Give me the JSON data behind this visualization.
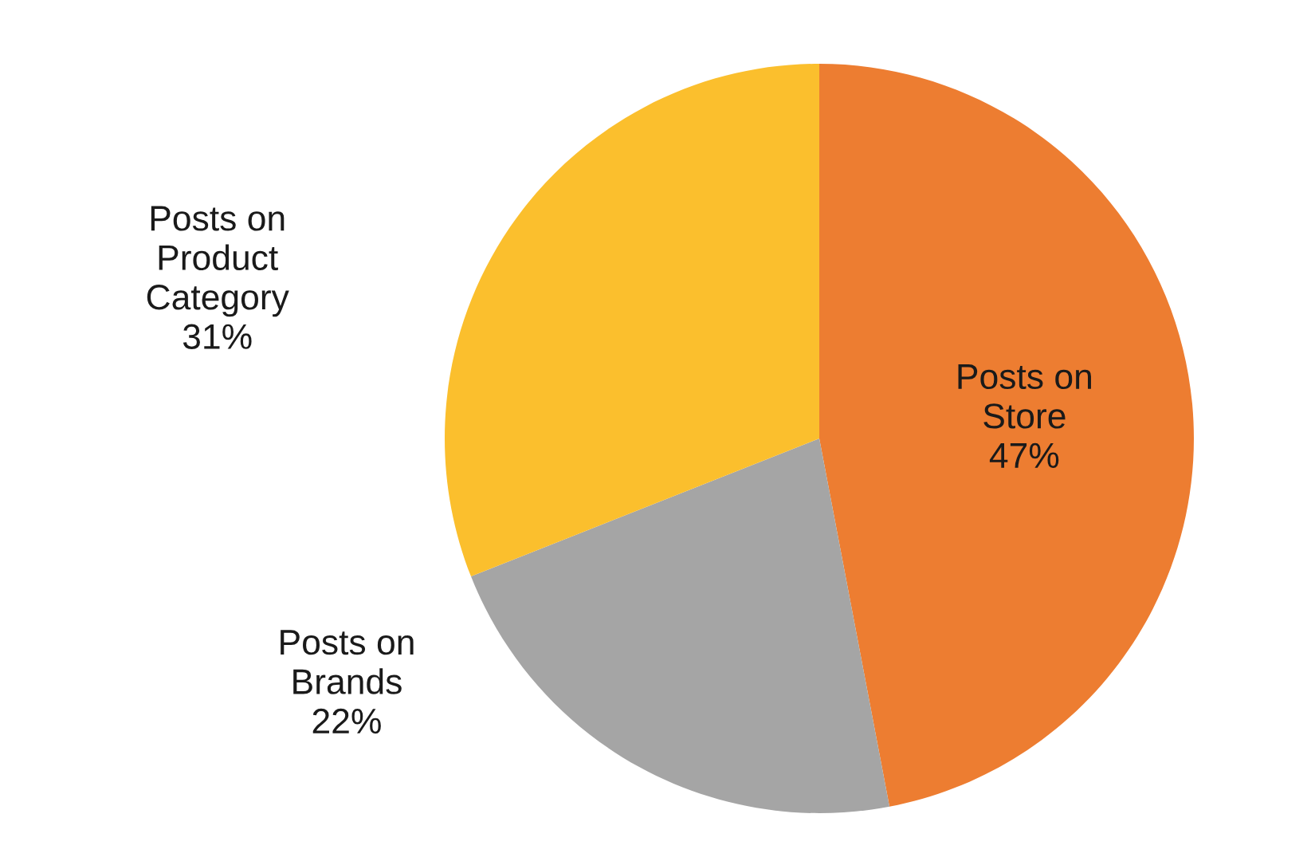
{
  "chart_data": {
    "type": "pie",
    "categories": [
      "Posts on\nStore",
      "Posts on\nBrands",
      "Posts on\nProduct\nCategory"
    ],
    "values": [
      47,
      22,
      31
    ],
    "value_labels": [
      "47%",
      "22%",
      "31%"
    ],
    "colors": [
      "#ed7d31",
      "#a5a5a5",
      "#fbbf2d"
    ]
  }
}
